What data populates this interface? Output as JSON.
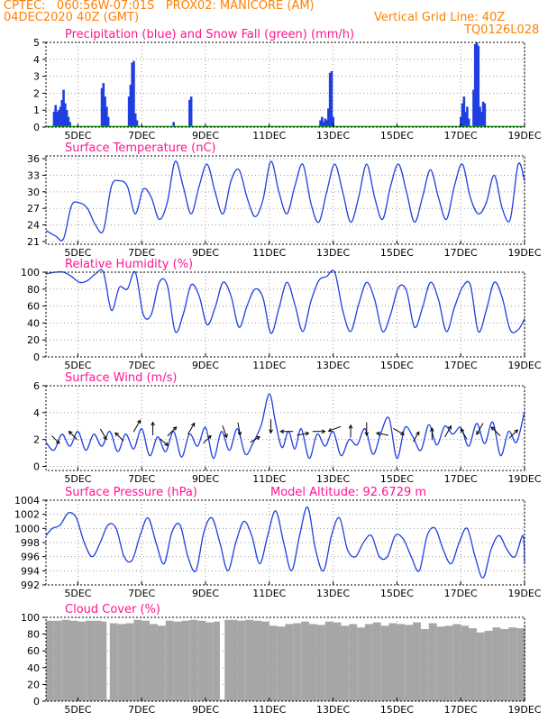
{
  "header": {
    "line1": "CPTEC:   060:56W-07:01S   PROX02: MANICORE (AM)",
    "line2": "04DEC2020 40Z (GMT)",
    "grid_note": "Vertical Grid Line: 40Z",
    "run_id": "TQ0126L028",
    "color": "#ff8000"
  },
  "colors": {
    "title": "#ff1493",
    "line": "#1f3fe0",
    "snow": "#22aa22",
    "cloud": "#a6a6a6",
    "grid": "#9a9a9a",
    "wind_arrow": "#000000"
  },
  "x_axis": {
    "range": [
      4,
      19
    ],
    "ticks": [
      5,
      7,
      9,
      11,
      13,
      15,
      17,
      19
    ],
    "tick_labels": [
      "5DEC",
      "7DEC",
      "9DEC",
      "11DEC",
      "13DEC",
      "15DEC",
      "17DEC",
      "19DEC"
    ]
  },
  "chart_data": [
    {
      "id": "precip",
      "type": "bar",
      "title": "Precipitation (blue) and Snow Fall (green) (mm/h)",
      "ylim": [
        0,
        5
      ],
      "yticks": [
        0,
        1,
        2,
        3,
        4,
        5
      ],
      "series": [
        {
          "name": "Precipitation",
          "color": "#1f3fe0",
          "x": [
            4.25,
            4.3,
            4.35,
            4.4,
            4.45,
            4.5,
            4.55,
            4.6,
            4.65,
            4.7,
            4.75,
            5.75,
            5.8,
            5.85,
            5.9,
            5.95,
            6.6,
            6.65,
            6.7,
            6.75,
            6.8,
            6.85,
            8.0,
            8.5,
            8.55,
            12.6,
            12.65,
            12.7,
            12.75,
            12.8,
            12.85,
            12.9,
            12.95,
            13.0,
            17.0,
            17.05,
            17.1,
            17.15,
            17.2,
            17.25,
            17.4,
            17.45,
            17.5,
            17.55,
            17.6,
            17.65,
            17.7,
            17.75
          ],
          "values": [
            0.9,
            1.3,
            0.9,
            1.0,
            1.2,
            1.6,
            2.2,
            1.4,
            1.0,
            0.6,
            0.3,
            2.3,
            2.6,
            1.8,
            1.2,
            0.6,
            1.8,
            2.5,
            3.8,
            3.9,
            0.8,
            0.4,
            0.3,
            1.6,
            1.8,
            0.4,
            0.6,
            0.3,
            0.5,
            0.4,
            1.1,
            3.2,
            3.3,
            0.6,
            0.6,
            1.4,
            1.8,
            0.9,
            1.2,
            0.5,
            2.2,
            4.9,
            5.0,
            4.8,
            1.2,
            0.9,
            1.5,
            1.4
          ]
        },
        {
          "name": "Snow Fall",
          "color": "#22aa22",
          "values": [
            0
          ]
        }
      ]
    },
    {
      "id": "temp",
      "type": "line",
      "title": "Surface Temperature (nC)",
      "ylim": [
        20.5,
        36.5
      ],
      "yticks": [
        21,
        24,
        27,
        30,
        33,
        36
      ],
      "x": [
        4.0,
        4.3,
        4.55,
        4.8,
        5.05,
        5.3,
        5.55,
        5.8,
        6.05,
        6.3,
        6.55,
        6.8,
        7.05,
        7.3,
        7.55,
        7.8,
        8.05,
        8.3,
        8.55,
        8.8,
        9.05,
        9.3,
        9.55,
        9.8,
        10.05,
        10.3,
        10.55,
        10.8,
        11.05,
        11.3,
        11.55,
        11.8,
        12.05,
        12.3,
        12.55,
        12.8,
        13.05,
        13.3,
        13.55,
        13.8,
        14.05,
        14.3,
        14.55,
        14.8,
        15.05,
        15.3,
        15.55,
        15.8,
        16.05,
        16.3,
        16.55,
        16.8,
        17.05,
        17.3,
        17.55,
        17.8,
        18.05,
        18.3,
        18.55,
        18.8,
        19.0
      ],
      "values": [
        23,
        22,
        21.5,
        27.5,
        28,
        27,
        24,
        23,
        31,
        32,
        31,
        26,
        30.5,
        29,
        25,
        28,
        35.5,
        31,
        26,
        31,
        35,
        30,
        26,
        32,
        34,
        29,
        25.5,
        28.5,
        35.5,
        30,
        26,
        31,
        35,
        28,
        24.5,
        30,
        35,
        30,
        24.5,
        29,
        35,
        29,
        25,
        31,
        35,
        30,
        24.5,
        29,
        34,
        29,
        25,
        31,
        35,
        29,
        26,
        28,
        33,
        27,
        25,
        35,
        32
      ]
    },
    {
      "id": "rh",
      "type": "line",
      "title": "Relative Humidity (%)",
      "ylim": [
        0,
        100
      ],
      "yticks": [
        0,
        20,
        40,
        60,
        80,
        100
      ],
      "x": [
        4.0,
        4.3,
        4.55,
        4.8,
        5.05,
        5.3,
        5.55,
        5.8,
        6.05,
        6.3,
        6.55,
        6.8,
        7.05,
        7.3,
        7.55,
        7.8,
        8.05,
        8.3,
        8.55,
        8.8,
        9.05,
        9.3,
        9.55,
        9.8,
        10.05,
        10.3,
        10.55,
        10.8,
        11.05,
        11.3,
        11.55,
        11.8,
        12.05,
        12.3,
        12.55,
        12.8,
        13.05,
        13.3,
        13.55,
        13.8,
        14.05,
        14.3,
        14.55,
        14.8,
        15.05,
        15.3,
        15.55,
        15.8,
        16.05,
        16.3,
        16.55,
        16.8,
        17.05,
        17.3,
        17.55,
        17.8,
        18.05,
        18.3,
        18.55,
        18.8,
        19.0
      ],
      "values": [
        98,
        100,
        100,
        95,
        88,
        90,
        98,
        100,
        55,
        82,
        80,
        100,
        50,
        50,
        88,
        85,
        30,
        50,
        85,
        72,
        38,
        58,
        88,
        72,
        35,
        60,
        80,
        70,
        28,
        57,
        88,
        62,
        30,
        65,
        90,
        95,
        100,
        55,
        30,
        62,
        88,
        68,
        30,
        50,
        82,
        78,
        35,
        58,
        88,
        68,
        30,
        58,
        82,
        85,
        30,
        55,
        88,
        70,
        32,
        32,
        45
      ]
    },
    {
      "id": "wind",
      "type": "line",
      "title": "Surface Wind (m/s)",
      "ylim": [
        -0.3,
        6
      ],
      "yticks": [
        0,
        2,
        4,
        6
      ],
      "x": [
        4.0,
        4.25,
        4.5,
        4.75,
        5.0,
        5.25,
        5.5,
        5.75,
        6.0,
        6.25,
        6.5,
        6.75,
        7.0,
        7.25,
        7.5,
        7.75,
        8.0,
        8.25,
        8.5,
        8.75,
        9.0,
        9.25,
        9.5,
        9.75,
        10.0,
        10.25,
        10.5,
        10.75,
        11.0,
        11.2,
        11.4,
        11.6,
        11.8,
        12.0,
        12.25,
        12.5,
        12.75,
        13.0,
        13.25,
        13.5,
        13.75,
        14.0,
        14.25,
        14.5,
        14.75,
        15.0,
        15.25,
        15.5,
        15.75,
        16.0,
        16.25,
        16.5,
        16.75,
        17.0,
        17.25,
        17.5,
        17.75,
        18.0,
        18.25,
        18.5,
        18.75,
        19.0
      ],
      "values": [
        1.8,
        1.2,
        2.4,
        1.5,
        2.6,
        1.2,
        2.4,
        1.5,
        2.6,
        1.1,
        2.4,
        1.3,
        2.8,
        0.8,
        2.2,
        1.1,
        2.6,
        0.7,
        2.4,
        1.5,
        2.9,
        0.6,
        2.6,
        1.2,
        2.8,
        0.9,
        1.8,
        3.1,
        5.4,
        3.2,
        1.4,
        2.6,
        1.3,
        2.8,
        0.6,
        2.4,
        1.5,
        2.6,
        0.8,
        2.0,
        1.6,
        2.8,
        0.9,
        2.5,
        3.6,
        0.6,
        2.9,
        2.2,
        1.2,
        3.1,
        1.6,
        3.0,
        2.4,
        2.9,
        1.5,
        3.2,
        1.7,
        3.3,
        0.8,
        2.6,
        1.8,
        4.1
      ],
      "arrows": [
        {
          "x": 4.3,
          "speed": 2.0,
          "dir_deg": 315
        },
        {
          "x": 4.85,
          "speed": 2.3,
          "dir_deg": 135
        },
        {
          "x": 5.8,
          "speed": 2.4,
          "dir_deg": 300
        },
        {
          "x": 6.3,
          "speed": 2.2,
          "dir_deg": 135
        },
        {
          "x": 6.85,
          "speed": 3.0,
          "dir_deg": 60
        },
        {
          "x": 7.35,
          "speed": 2.8,
          "dir_deg": 90
        },
        {
          "x": 7.7,
          "speed": 1.8,
          "dir_deg": 320
        },
        {
          "x": 7.95,
          "speed": 2.6,
          "dir_deg": 45
        },
        {
          "x": 8.55,
          "speed": 2.8,
          "dir_deg": 60
        },
        {
          "x": 9.05,
          "speed": 2.0,
          "dir_deg": 45
        },
        {
          "x": 9.6,
          "speed": 2.6,
          "dir_deg": 290
        },
        {
          "x": 10.05,
          "speed": 2.8,
          "dir_deg": 280
        },
        {
          "x": 10.55,
          "speed": 2.0,
          "dir_deg": 30
        },
        {
          "x": 11.05,
          "speed": 3.0,
          "dir_deg": 270
        },
        {
          "x": 11.55,
          "speed": 2.6,
          "dir_deg": 180
        },
        {
          "x": 12.05,
          "speed": 2.4,
          "dir_deg": 10
        },
        {
          "x": 12.55,
          "speed": 2.6,
          "dir_deg": 0
        },
        {
          "x": 13.05,
          "speed": 2.8,
          "dir_deg": 200
        },
        {
          "x": 13.55,
          "speed": 2.6,
          "dir_deg": 90
        },
        {
          "x": 14.05,
          "speed": 2.8,
          "dir_deg": 270
        },
        {
          "x": 14.55,
          "speed": 2.4,
          "dir_deg": 170
        },
        {
          "x": 15.05,
          "speed": 2.6,
          "dir_deg": 330
        },
        {
          "x": 15.6,
          "speed": 2.2,
          "dir_deg": 60
        },
        {
          "x": 16.1,
          "speed": 2.4,
          "dir_deg": 90
        },
        {
          "x": 16.6,
          "speed": 2.6,
          "dir_deg": 60
        },
        {
          "x": 17.1,
          "speed": 2.4,
          "dir_deg": 120
        },
        {
          "x": 17.6,
          "speed": 2.8,
          "dir_deg": 240
        },
        {
          "x": 18.1,
          "speed": 2.6,
          "dir_deg": 135
        },
        {
          "x": 18.65,
          "speed": 2.4,
          "dir_deg": 45
        }
      ]
    },
    {
      "id": "pres",
      "type": "line",
      "title": "Surface Pressure (hPa)",
      "annotation": "Model Altitude: 92.6729 m",
      "ylim": [
        992,
        1004
      ],
      "yticks": [
        992,
        994,
        996,
        998,
        1000,
        1002,
        1004
      ],
      "x": [
        4.0,
        4.2,
        4.45,
        4.7,
        4.95,
        5.2,
        5.45,
        5.7,
        5.95,
        6.2,
        6.45,
        6.7,
        6.95,
        7.2,
        7.45,
        7.7,
        7.95,
        8.2,
        8.45,
        8.7,
        8.95,
        9.2,
        9.45,
        9.7,
        9.95,
        10.2,
        10.45,
        10.7,
        10.95,
        11.2,
        11.45,
        11.7,
        11.95,
        12.2,
        12.45,
        12.7,
        12.95,
        13.2,
        13.45,
        13.7,
        13.95,
        14.2,
        14.45,
        14.7,
        14.95,
        15.2,
        15.45,
        15.7,
        15.95,
        16.2,
        16.45,
        16.7,
        16.95,
        17.2,
        17.45,
        17.7,
        17.95,
        18.2,
        18.45,
        18.7,
        18.95,
        19.0
      ],
      "values": [
        999,
        1000,
        1000.5,
        1002.2,
        1001.5,
        998,
        996,
        998,
        1000.5,
        1000,
        996,
        995.5,
        999,
        1001.5,
        998,
        995,
        999.5,
        1000.5,
        996,
        994,
        999.5,
        1001.5,
        998,
        994,
        998,
        1001,
        999,
        995,
        999,
        1002.5,
        998,
        994,
        999,
        1003,
        997,
        994,
        999,
        1001.5,
        997,
        996,
        998,
        999,
        996,
        996,
        999,
        998.5,
        996,
        994,
        999,
        1000,
        997,
        995,
        998,
        1000,
        996,
        993,
        997,
        999,
        997,
        996,
        999,
        995
      ]
    },
    {
      "id": "cloud",
      "type": "bar",
      "title": "Cloud Cover (%)",
      "ylim": [
        0,
        100
      ],
      "yticks": [
        0,
        20,
        40,
        60,
        80,
        100
      ],
      "x": [
        4.0,
        4.25,
        4.5,
        4.75,
        5.0,
        5.25,
        5.5,
        5.75,
        5.9,
        6.0,
        6.25,
        6.5,
        6.75,
        7.0,
        7.25,
        7.5,
        7.75,
        8.0,
        8.25,
        8.5,
        8.75,
        9.0,
        9.25,
        9.45,
        9.6,
        9.75,
        10.0,
        10.25,
        10.5,
        10.75,
        11.0,
        11.25,
        11.5,
        11.75,
        12.0,
        12.25,
        12.5,
        12.75,
        13.0,
        13.25,
        13.5,
        13.75,
        14.0,
        14.25,
        14.5,
        14.75,
        15.0,
        15.25,
        15.5,
        15.75,
        16.0,
        16.25,
        16.5,
        16.75,
        17.0,
        17.25,
        17.5,
        17.75,
        18.0,
        18.25,
        18.5,
        18.75,
        19.0
      ],
      "values": [
        96,
        96,
        97,
        96,
        95,
        96,
        96,
        95,
        2,
        93,
        92,
        93,
        97,
        96,
        92,
        90,
        96,
        95,
        96,
        97,
        96,
        94,
        95,
        2,
        97,
        97,
        96,
        97,
        96,
        95,
        90,
        89,
        92,
        93,
        95,
        92,
        91,
        95,
        94,
        90,
        92,
        88,
        92,
        94,
        90,
        93,
        92,
        91,
        94,
        86,
        93,
        89,
        90,
        92,
        90,
        87,
        82,
        84,
        88,
        86,
        88,
        87,
        90
      ]
    }
  ]
}
